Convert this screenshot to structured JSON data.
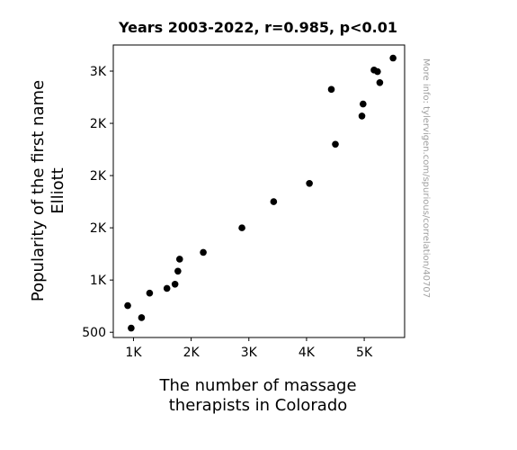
{
  "chart_data": {
    "type": "scatter",
    "title": "Years 2003-2022, r=0.985, p<0.01",
    "xlabel": [
      "The number of massage",
      "therapists in Colorado"
    ],
    "ylabel": [
      "Popularity of the first name",
      "Elliott"
    ],
    "watermark": "More info: tylervigen.com/spurious/correlation/40707",
    "xlim": [
      650,
      5700
    ],
    "ylim": [
      450,
      3250
    ],
    "x_ticks": [
      {
        "value": 1000,
        "label": "1K"
      },
      {
        "value": 2000,
        "label": "2K"
      },
      {
        "value": 3000,
        "label": "3K"
      },
      {
        "value": 4000,
        "label": "4K"
      },
      {
        "value": 5000,
        "label": "5K"
      }
    ],
    "y_ticks": [
      {
        "value": 500,
        "label": "500"
      },
      {
        "value": 1000,
        "label": "1K"
      },
      {
        "value": 1500,
        "label": "2K"
      },
      {
        "value": 2000,
        "label": "2K"
      },
      {
        "value": 2500,
        "label": "2K"
      },
      {
        "value": 3000,
        "label": "3K"
      }
    ],
    "grid": false,
    "point_color": "#000000",
    "points": [
      {
        "x": 900,
        "y": 755
      },
      {
        "x": 960,
        "y": 540
      },
      {
        "x": 1140,
        "y": 640
      },
      {
        "x": 1280,
        "y": 875
      },
      {
        "x": 1580,
        "y": 920
      },
      {
        "x": 1720,
        "y": 960
      },
      {
        "x": 1770,
        "y": 1085
      },
      {
        "x": 1800,
        "y": 1200
      },
      {
        "x": 2210,
        "y": 1265
      },
      {
        "x": 2880,
        "y": 1500
      },
      {
        "x": 3430,
        "y": 1750
      },
      {
        "x": 4050,
        "y": 1925
      },
      {
        "x": 4430,
        "y": 2825
      },
      {
        "x": 4500,
        "y": 2300
      },
      {
        "x": 4960,
        "y": 2570
      },
      {
        "x": 4980,
        "y": 2685
      },
      {
        "x": 5170,
        "y": 3010
      },
      {
        "x": 5230,
        "y": 2995
      },
      {
        "x": 5270,
        "y": 2890
      },
      {
        "x": 5500,
        "y": 3125
      }
    ]
  }
}
